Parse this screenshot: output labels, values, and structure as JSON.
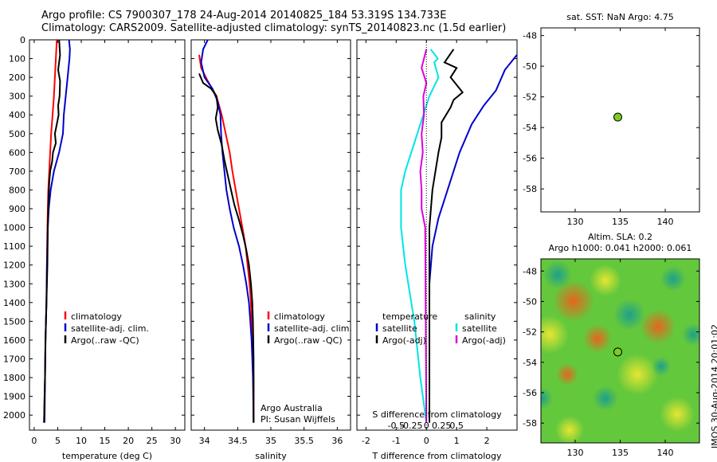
{
  "header": {
    "line1": "Argo profile: CS 7900307_178 24-Aug-2014 20140825_184 53.319S 134.733E",
    "line2": "Climatology: CARS2009. Satellite-adjusted climatology: synTS_20140823.nc (1.5d earlier)"
  },
  "footer": {
    "stamp": "IMOS 30-Aug-2014 20:01:02"
  },
  "colors": {
    "climatology": "#ff0000",
    "satellite": "#0000cc",
    "argo": "#000000",
    "satellite_salinity": "#00e5e5",
    "argo_salinity": "#dd00dd",
    "float_marker": "#7ccc1e"
  },
  "chart_data": [
    {
      "id": "temperature",
      "type": "line",
      "xlabel": "temperature (deg C)",
      "ylabel": "",
      "xlim": [
        -1,
        32
      ],
      "ylim": [
        2080,
        0
      ],
      "xticks": [
        0,
        5,
        10,
        15,
        20,
        25,
        30
      ],
      "yticks": [
        0,
        100,
        200,
        300,
        400,
        500,
        600,
        700,
        800,
        900,
        1000,
        1100,
        1200,
        1300,
        1400,
        1500,
        1600,
        1700,
        1800,
        1900,
        2000
      ],
      "legend": {
        "placement": "lower-middle",
        "items": [
          "climatology",
          "satellite-adj. clim.",
          "Argo(..raw -QC)"
        ]
      },
      "series": [
        {
          "name": "climatology",
          "color": "#ff0000",
          "points": [
            [
              4.8,
              0
            ],
            [
              4.7,
              50
            ],
            [
              4.6,
              100
            ],
            [
              4.4,
              200
            ],
            [
              4.2,
              300
            ],
            [
              3.9,
              400
            ],
            [
              3.6,
              500
            ],
            [
              3.4,
              600
            ],
            [
              3.2,
              700
            ],
            [
              3.0,
              800
            ],
            [
              2.9,
              900
            ],
            [
              2.8,
              1000
            ],
            [
              2.7,
              1200
            ],
            [
              2.6,
              1400
            ],
            [
              2.4,
              1600
            ],
            [
              2.3,
              1800
            ],
            [
              2.2,
              1900
            ],
            [
              2.1,
              2040
            ]
          ]
        },
        {
          "name": "satellite-adj. clim.",
          "color": "#0000cc",
          "points": [
            [
              7.4,
              0
            ],
            [
              7.6,
              50
            ],
            [
              7.5,
              100
            ],
            [
              7.1,
              200
            ],
            [
              6.7,
              300
            ],
            [
              6.3,
              400
            ],
            [
              6.1,
              500
            ],
            [
              5.3,
              600
            ],
            [
              4.2,
              700
            ],
            [
              3.5,
              800
            ],
            [
              3.1,
              900
            ],
            [
              2.9,
              1000
            ],
            [
              2.7,
              1200
            ],
            [
              2.6,
              1400
            ],
            [
              2.4,
              1600
            ],
            [
              2.3,
              1800
            ],
            [
              2.2,
              2040
            ]
          ]
        },
        {
          "name": "Argo(..raw -QC)",
          "color": "#000000",
          "points": [
            [
              5.3,
              0
            ],
            [
              5.5,
              80
            ],
            [
              5.1,
              160
            ],
            [
              5.5,
              220
            ],
            [
              5.4,
              300
            ],
            [
              5.1,
              350
            ],
            [
              5.2,
              400
            ],
            [
              4.8,
              450
            ],
            [
              4.4,
              500
            ],
            [
              4.6,
              550
            ],
            [
              4.0,
              600
            ],
            [
              3.8,
              650
            ],
            [
              3.4,
              700
            ],
            [
              3.2,
              760
            ],
            [
              3.1,
              820
            ],
            [
              3.0,
              900
            ],
            [
              2.9,
              1000
            ],
            [
              2.8,
              1200
            ],
            [
              2.6,
              1400
            ],
            [
              2.4,
              1600
            ],
            [
              2.3,
              1800
            ],
            [
              2.1,
              2040
            ]
          ]
        }
      ]
    },
    {
      "id": "salinity",
      "type": "line",
      "xlabel": "salinity",
      "ylabel": "",
      "xlim": [
        33.8,
        36.2
      ],
      "ylim": [
        2080,
        0
      ],
      "xticks": [
        34,
        34.5,
        35,
        35.5,
        36
      ],
      "legend": {
        "placement": "lower-middle",
        "items": [
          "climatology",
          "satellite-adj. clim.",
          "Argo(..raw -QC)"
        ]
      },
      "annotation": [
        "Argo Australia",
        "PI: Susan Wijffels"
      ],
      "series": [
        {
          "name": "climatology",
          "color": "#ff0000",
          "points": [
            [
              33.92,
              80
            ],
            [
              33.95,
              150
            ],
            [
              34.05,
              220
            ],
            [
              34.18,
              300
            ],
            [
              34.26,
              400
            ],
            [
              34.32,
              500
            ],
            [
              34.38,
              600
            ],
            [
              34.42,
              700
            ],
            [
              34.47,
              800
            ],
            [
              34.52,
              900
            ],
            [
              34.57,
              1000
            ],
            [
              34.62,
              1100
            ],
            [
              34.65,
              1200
            ],
            [
              34.68,
              1300
            ],
            [
              34.7,
              1400
            ],
            [
              34.71,
              1500
            ],
            [
              34.72,
              1600
            ],
            [
              34.73,
              1700
            ],
            [
              34.74,
              1800
            ],
            [
              34.74,
              2040
            ]
          ]
        },
        {
          "name": "satellite-adj. clim.",
          "color": "#0000cc",
          "points": [
            [
              34.05,
              0
            ],
            [
              33.98,
              50
            ],
            [
              33.95,
              120
            ],
            [
              34.0,
              200
            ],
            [
              34.12,
              260
            ],
            [
              34.2,
              330
            ],
            [
              34.24,
              400
            ],
            [
              34.25,
              500
            ],
            [
              34.27,
              600
            ],
            [
              34.3,
              700
            ],
            [
              34.33,
              800
            ],
            [
              34.38,
              900
            ],
            [
              34.44,
              1000
            ],
            [
              34.52,
              1100
            ],
            [
              34.58,
              1200
            ],
            [
              34.63,
              1300
            ],
            [
              34.67,
              1400
            ],
            [
              34.69,
              1500
            ],
            [
              34.71,
              1600
            ],
            [
              34.72,
              1700
            ],
            [
              34.73,
              1800
            ],
            [
              34.74,
              2040
            ]
          ]
        },
        {
          "name": "Argo(..raw -QC)",
          "color": "#000000",
          "points": [
            [
              33.92,
              180
            ],
            [
              33.98,
              230
            ],
            [
              34.1,
              260
            ],
            [
              34.18,
              300
            ],
            [
              34.2,
              360
            ],
            [
              34.17,
              420
            ],
            [
              34.2,
              480
            ],
            [
              34.26,
              560
            ],
            [
              34.3,
              640
            ],
            [
              34.35,
              720
            ],
            [
              34.4,
              800
            ],
            [
              34.45,
              880
            ],
            [
              34.52,
              960
            ],
            [
              34.58,
              1040
            ],
            [
              34.63,
              1120
            ],
            [
              34.67,
              1200
            ],
            [
              34.7,
              1300
            ],
            [
              34.72,
              1400
            ],
            [
              34.73,
              1500
            ],
            [
              34.74,
              1700
            ],
            [
              34.74,
              2040
            ]
          ]
        }
      ]
    },
    {
      "id": "differences",
      "type": "line",
      "xlabel": "T difference from climatology",
      "xlabel2": "S difference from climatology",
      "xlim": [
        -2.3,
        3.0
      ],
      "ylim": [
        2080,
        0
      ],
      "xticks": [
        -2,
        -1,
        0,
        1,
        2
      ],
      "x2ticks": [
        "-0.5",
        "-0.25",
        "0",
        "0.25",
        "0.5"
      ],
      "legend": {
        "placement": "lower-middle",
        "headers": [
          "temperature",
          "salinity"
        ],
        "items": [
          "satellite",
          "Argo(-adj)",
          "satellite",
          "Argo(-adj)"
        ]
      },
      "series": [
        {
          "name": "satellite",
          "variable": "temperature",
          "color": "#0000cc",
          "points": [
            [
              3.0,
              80
            ],
            [
              2.6,
              160
            ],
            [
              2.3,
              270
            ],
            [
              1.9,
              350
            ],
            [
              1.5,
              450
            ],
            [
              1.1,
              600
            ],
            [
              0.7,
              800
            ],
            [
              0.4,
              950
            ],
            [
              0.2,
              1100
            ],
            [
              0.1,
              1300
            ],
            [
              0.1,
              2040
            ]
          ]
        },
        {
          "name": "Argo(-adj)",
          "variable": "temperature",
          "color": "#000000",
          "points": [
            [
              0.9,
              50
            ],
            [
              0.6,
              120
            ],
            [
              1.0,
              150
            ],
            [
              0.8,
              200
            ],
            [
              1.2,
              280
            ],
            [
              0.9,
              320
            ],
            [
              0.8,
              360
            ],
            [
              0.5,
              440
            ],
            [
              0.5,
              520
            ],
            [
              0.4,
              600
            ],
            [
              0.3,
              700
            ],
            [
              0.2,
              800
            ],
            [
              0.15,
              900
            ],
            [
              0.1,
              1000
            ],
            [
              0.1,
              2040
            ]
          ]
        },
        {
          "name": "satellite",
          "variable": "salinity",
          "color": "#00e5e5",
          "points": [
            [
              0.07,
              50
            ],
            [
              0.19,
              100
            ],
            [
              0.13,
              120
            ],
            [
              0.2,
              200
            ],
            [
              0.05,
              300
            ],
            [
              -0.05,
              400
            ],
            [
              -0.15,
              500
            ],
            [
              -0.25,
              600
            ],
            [
              -0.35,
              700
            ],
            [
              -0.42,
              800
            ],
            [
              -0.42,
              1000
            ],
            [
              -0.35,
              1200
            ],
            [
              -0.2,
              1500
            ],
            [
              -0.1,
              1800
            ],
            [
              0.0,
              2040
            ]
          ]
        },
        {
          "name": "Argo(-adj)",
          "variable": "salinity",
          "color": "#dd00dd",
          "points": [
            [
              0.0,
              50
            ],
            [
              -0.08,
              150
            ],
            [
              0.0,
              230
            ],
            [
              -0.05,
              300
            ],
            [
              -0.04,
              400
            ],
            [
              -0.08,
              500
            ],
            [
              -0.06,
              600
            ],
            [
              -0.1,
              700
            ],
            [
              -0.08,
              800
            ],
            [
              -0.08,
              900
            ],
            [
              -0.02,
              1000
            ],
            [
              0.0,
              2040
            ]
          ]
        }
      ]
    },
    {
      "id": "sst-map",
      "type": "scatter",
      "title": "sat. SST: NaN Argo: 4.75",
      "xlim": [
        126.2,
        143.8
      ],
      "ylim": [
        -59.5,
        -47.5
      ],
      "xticks": [
        130,
        135,
        140
      ],
      "yticks": [
        -48,
        -50,
        -52,
        -54,
        -56,
        -58
      ],
      "points": [
        {
          "lon": 134.733,
          "lat": -53.319
        }
      ]
    },
    {
      "id": "sla-map",
      "type": "heatmap",
      "title": "Altim. SLA: 0.2",
      "subtitle": "Argo h1000: 0.041 h2000: 0.061",
      "xlim": [
        126.2,
        143.8
      ],
      "ylim": [
        -59.3,
        -47.2
      ],
      "xticks": [
        130,
        135,
        140
      ],
      "yticks": [
        -48,
        -50,
        -52,
        -54,
        -56,
        -58
      ],
      "points": [
        {
          "lon": 134.733,
          "lat": -53.319
        }
      ]
    }
  ]
}
